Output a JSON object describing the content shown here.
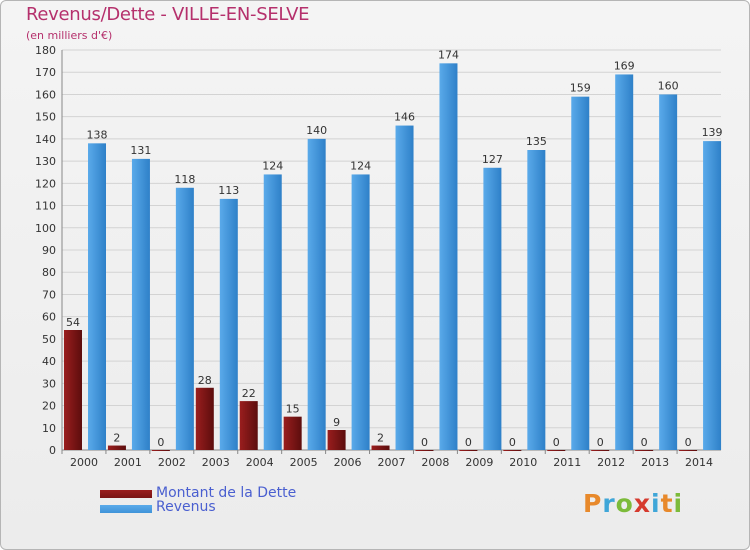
{
  "chart_data": {
    "type": "bar",
    "title": "Revenus/Dette - VILLE-EN-SELVE",
    "subtitle": "(en milliers d'€)",
    "categories": [
      "2000",
      "2001",
      "2002",
      "2003",
      "2004",
      "2005",
      "2006",
      "2007",
      "2008",
      "2009",
      "2010",
      "2011",
      "2012",
      "2013",
      "2014"
    ],
    "series": [
      {
        "name": "Montant de la Dette",
        "values": [
          54,
          2,
          0,
          28,
          22,
          15,
          9,
          2,
          0,
          0,
          0,
          0,
          0,
          0,
          0
        ]
      },
      {
        "name": "Revenus",
        "values": [
          138,
          131,
          118,
          113,
          124,
          140,
          124,
          146,
          174,
          127,
          135,
          159,
          169,
          160,
          139
        ]
      }
    ],
    "ylim": [
      0,
      180
    ],
    "ytick_step": 10,
    "grid": "horizontal",
    "legend_position": "bottom-left"
  },
  "colors": {
    "debt": "#7a1414",
    "revenue": "#3f93d8",
    "title": "#b5306c",
    "legend_text": "#4a5fd0"
  },
  "brand": {
    "letters": [
      "P",
      "r",
      "o",
      "x",
      "i",
      "t",
      "i"
    ],
    "letter_colors": [
      "#e8892b",
      "#3fa6d8",
      "#7cbb3a",
      "#d63a2e",
      "#3fa6d8",
      "#e8892b",
      "#7cbb3a"
    ]
  }
}
